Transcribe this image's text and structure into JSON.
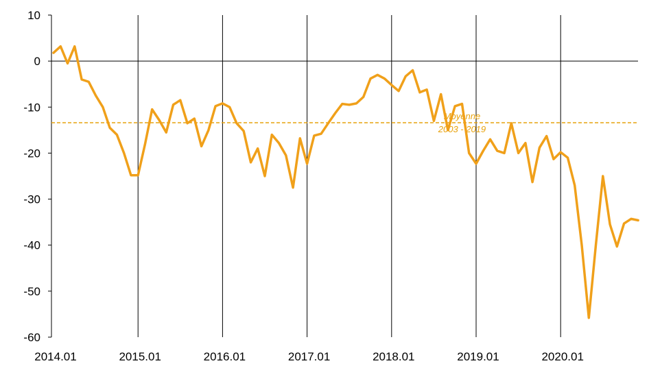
{
  "chart_data": {
    "type": "line",
    "title": "",
    "xlabel": "",
    "ylabel": "",
    "ylim": [
      -60,
      10
    ],
    "yticks": [
      10,
      0,
      -10,
      -20,
      -30,
      -40,
      -50,
      -60
    ],
    "xticks": [
      "2014.01",
      "2015.01",
      "2016.01",
      "2017.01",
      "2018.01",
      "2019.01",
      "2020.01"
    ],
    "grid": "vertical lines at each year",
    "series_color": "#f0a01a",
    "average": {
      "label_line1": "Moyenne",
      "label_line2": "2003 - 2019",
      "value": -13.4,
      "color": "#e8a20c"
    },
    "series": [
      {
        "values": [
          1.8,
          3.2,
          -0.5,
          3.2,
          -4.0,
          -4.5,
          -7.5,
          -10.0,
          -14.5,
          -16.0,
          -20.0,
          -24.8,
          -24.8,
          -18.0,
          -10.5,
          -12.8,
          -15.5,
          -9.5,
          -8.5,
          -13.5,
          -12.5,
          -18.5,
          -15.0,
          -9.8,
          -9.2,
          -10.0,
          -13.5,
          -15.2,
          -22.0,
          -19.0,
          -25.0,
          -16.0,
          -17.8,
          -20.5,
          -27.5,
          -16.8,
          -22.3,
          -16.2,
          -15.8,
          -13.5,
          -11.3,
          -9.3,
          -9.5,
          -9.2,
          -7.8,
          -3.8,
          -3.0,
          -3.8,
          -5.2,
          -6.5,
          -3.3,
          -2.0,
          -6.8,
          -6.2,
          -13.0,
          -7.2,
          -15.0,
          -9.8,
          -9.3,
          -20.0,
          -22.3,
          -19.5,
          -17.0,
          -19.5,
          -20.0,
          -13.5,
          -20.0,
          -17.8,
          -26.3,
          -18.8,
          -16.3,
          -21.3,
          -19.8,
          -21.0,
          -27.0,
          -40.0,
          -55.8,
          -40.0,
          -25.0,
          -35.5,
          -40.3,
          -35.3,
          -34.3,
          -34.6
        ]
      }
    ]
  }
}
